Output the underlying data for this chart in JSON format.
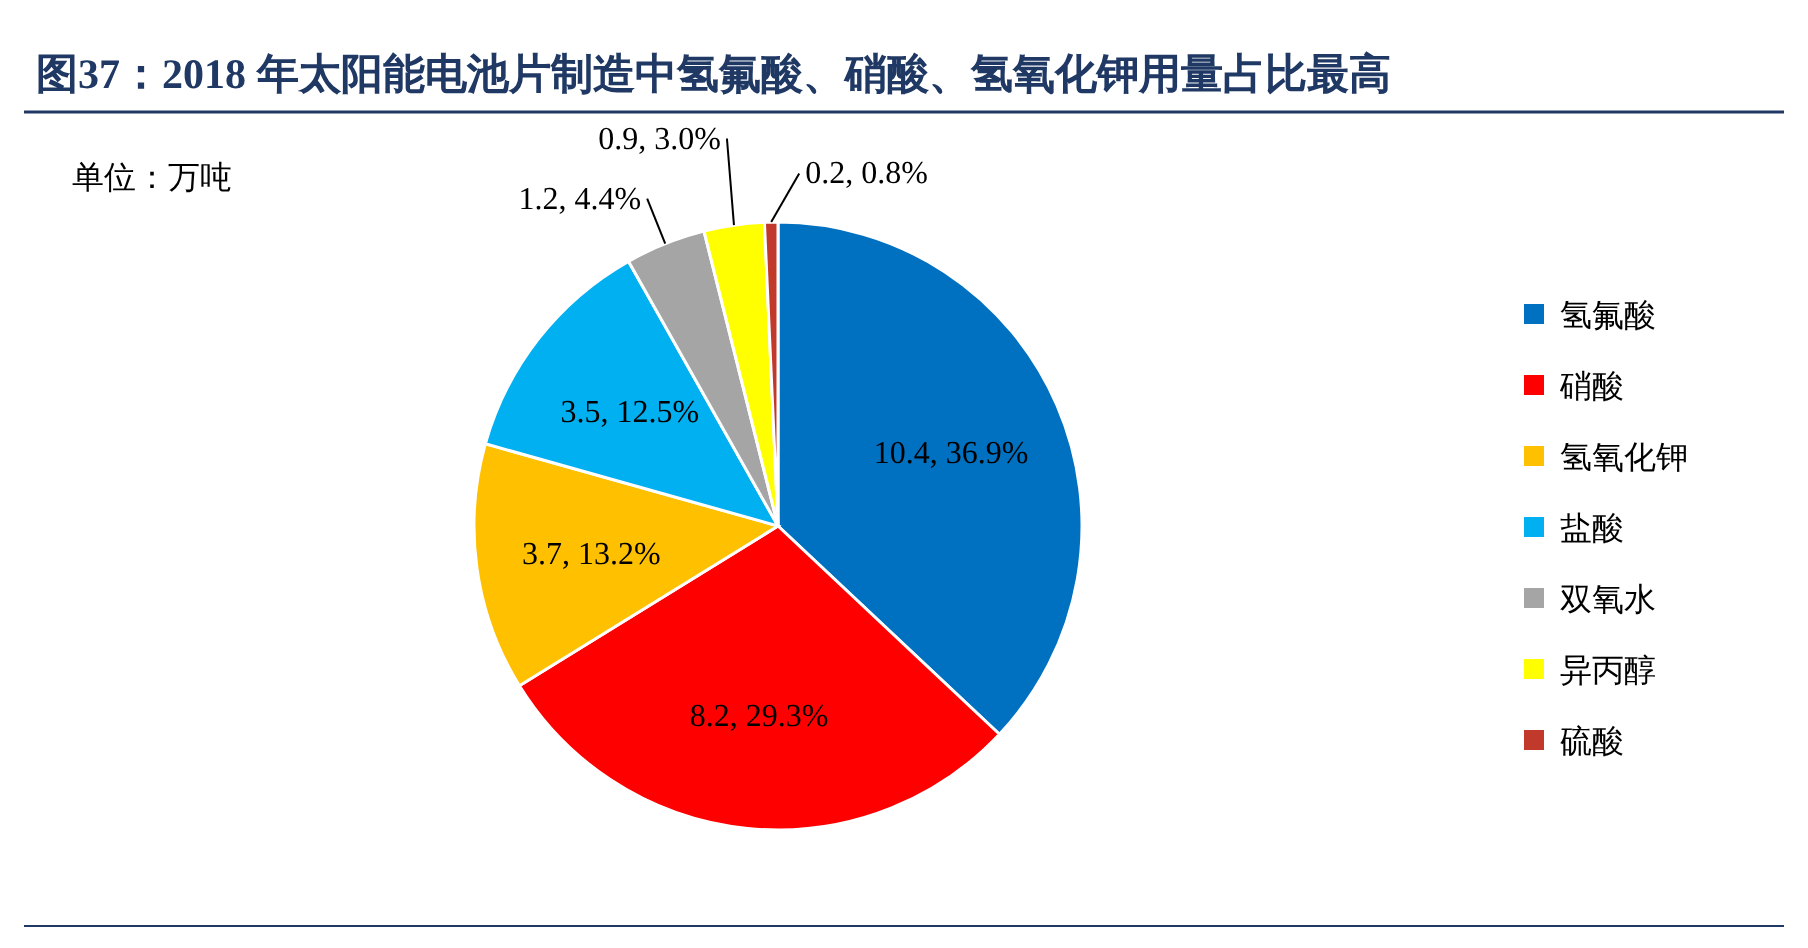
{
  "chart_data": {
    "type": "pie",
    "title": "图37：2018 年太阳能电池片制造中氢氟酸、硝酸、氢氧化钾用量占比最高",
    "annotations": [
      "单位：万吨"
    ],
    "categories": [
      "氢氟酸",
      "硝酸",
      "氢氧化钾",
      "盐酸",
      "双氧水",
      "异丙醇",
      "硫酸"
    ],
    "values": [
      10.4,
      8.2,
      3.7,
      3.5,
      1.2,
      0.9,
      0.2
    ],
    "value_labels": [
      "10.4, 36.9%",
      "8.2, 29.3%",
      "3.7, 13.2%",
      "3.5, 12.5%",
      "1.2, 4.4%",
      "0.9, 3.0%",
      "0.2, 0.8%"
    ],
    "colors": [
      "#0070c0",
      "#ff0000",
      "#ffc000",
      "#00b0f0",
      "#a5a5a5",
      "#ffff00",
      "#c0392b"
    ],
    "legend": "right"
  }
}
